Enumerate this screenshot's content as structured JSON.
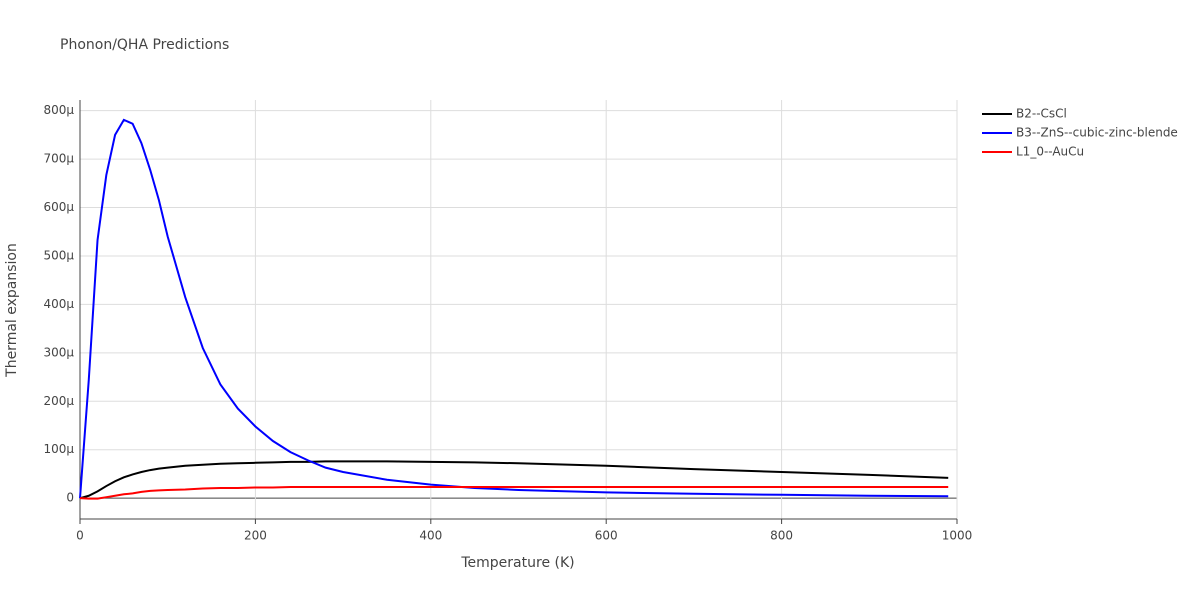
{
  "chart_data": {
    "type": "line",
    "title": "Phonon/QHA Predictions",
    "x_label": "Temperature (K)",
    "y_label": "Thermal expansion",
    "x": [
      0,
      10,
      20,
      30,
      40,
      50,
      60,
      70,
      80,
      90,
      100,
      120,
      140,
      160,
      180,
      200,
      220,
      240,
      260,
      280,
      300,
      350,
      400,
      450,
      500,
      600,
      700,
      800,
      900,
      990
    ],
    "series": [
      {
        "name": "B2--CsCl",
        "color": "#000000",
        "values": [
          0,
          5e-06,
          1.4e-05,
          2.5e-05,
          3.5e-05,
          4.3e-05,
          4.9e-05,
          5.4e-05,
          5.8e-05,
          6.1e-05,
          6.3e-05,
          6.7e-05,
          6.9e-05,
          7.1e-05,
          7.2e-05,
          7.3e-05,
          7.4e-05,
          7.5e-05,
          7.5e-05,
          7.6e-05,
          7.6e-05,
          7.6e-05,
          7.5e-05,
          7.4e-05,
          7.2e-05,
          6.7e-05,
          6e-05,
          5.4e-05,
          4.8e-05,
          4.2e-05
        ]
      },
      {
        "name": "B3--ZnS--cubic-zinc-blende",
        "color": "#0000ff",
        "values": [
          0,
          0.000244,
          0.000533,
          0.000667,
          0.00075,
          0.000781,
          0.000773,
          0.000733,
          0.000678,
          0.000615,
          0.00054,
          0.000415,
          0.00031,
          0.000235,
          0.000185,
          0.000148,
          0.000118,
          9.5e-05,
          7.8e-05,
          6.3e-05,
          5.4e-05,
          3.8e-05,
          2.8e-05,
          2.1e-05,
          1.7e-05,
          1.2e-05,
          9e-06,
          7e-06,
          5e-06,
          4e-06
        ]
      },
      {
        "name": "L1_0--AuCu",
        "color": "#ff0000",
        "values": [
          0,
          -1e-06,
          -1e-06,
          2e-06,
          5e-06,
          8e-06,
          1e-05,
          1.3e-05,
          1.5e-05,
          1.6e-05,
          1.7e-05,
          1.8e-05,
          2e-05,
          2.1e-05,
          2.1e-05,
          2.2e-05,
          2.2e-05,
          2.3e-05,
          2.3e-05,
          2.3e-05,
          2.3e-05,
          2.3e-05,
          2.3e-05,
          2.3e-05,
          2.3e-05,
          2.3e-05,
          2.3e-05,
          2.3e-05,
          2.3e-05,
          2.3e-05
        ]
      }
    ],
    "xlim": [
      0,
      1000
    ],
    "xticks": [
      0,
      200,
      400,
      600,
      800,
      1000
    ],
    "ylim": [
      -4.3e-05,
      0.000822
    ],
    "yticks": [
      0,
      {
        "value": 0.0001,
        "label": "100μ"
      },
      {
        "value": 0.0002,
        "label": "200μ"
      },
      {
        "value": 0.0003,
        "label": "300μ"
      },
      {
        "value": 0.0004,
        "label": "400μ"
      },
      {
        "value": 0.0005,
        "label": "500μ"
      },
      {
        "value": 0.0006,
        "label": "600μ"
      },
      {
        "value": 0.0007,
        "label": "700μ"
      },
      {
        "value": 0.0008,
        "label": "800μ"
      }
    ],
    "grid": true,
    "legend": "right"
  }
}
